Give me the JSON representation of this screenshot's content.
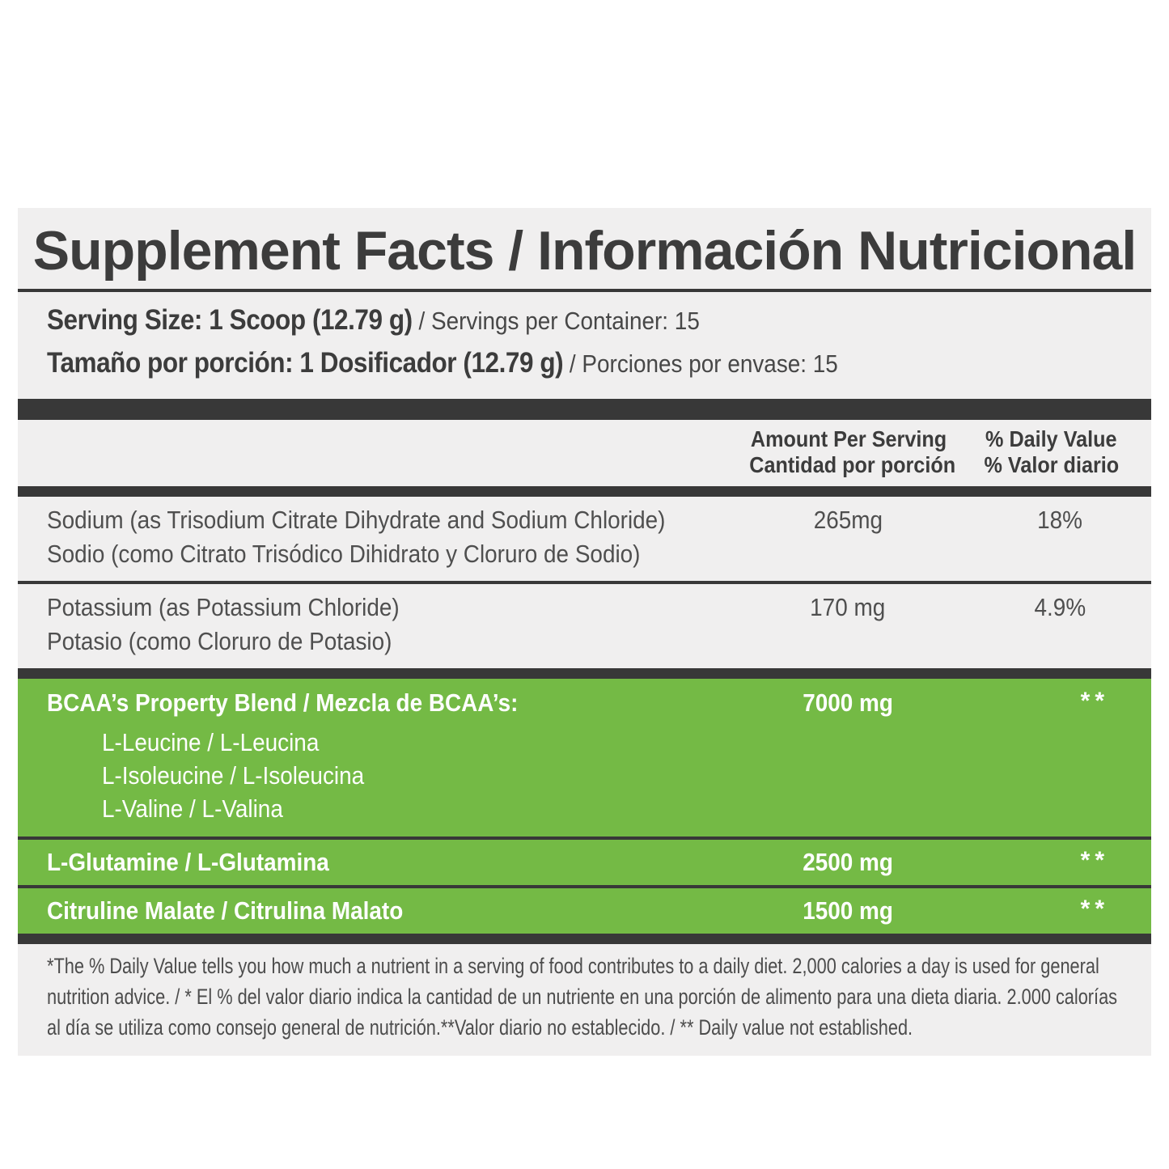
{
  "colors": {
    "green": "#74ba45",
    "dark_bar": "#383838",
    "panel_bg": "#f0efef",
    "text_dark": "#3c3c3c",
    "text_gray": "#4f4f4f"
  },
  "label": {
    "title": "Supplement Facts / Información Nutricional",
    "serving": {
      "en_bold": "Serving Size: 1 Scoop (12.79 g)",
      "en_rest": " / Servings per Container: 15",
      "es_bold": "Tamaño por porción: 1 Dosificador (12.79 g)",
      "es_rest": " / Porciones por envase: 15"
    },
    "columns": {
      "amount_en": "Amount Per Serving",
      "amount_es": "Cantidad por porción",
      "dv_en": "% Daily Value",
      "dv_es": "% Valor diario"
    },
    "rows": [
      {
        "name_en": "Sodium (as Trisodium Citrate Dihydrate and Sodium Chloride)",
        "name_es": "Sodio (como Citrato Trisódico Dihidrato y Cloruro de Sodio)",
        "amount": "265mg",
        "dv": "18%"
      },
      {
        "name_en": "Potassium (as Potassium Chloride)",
        "name_es": "Potasio (como Cloruro de Potasio)",
        "amount": "170 mg",
        "dv": "4.9%"
      }
    ],
    "green_rows": [
      {
        "name": "BCAA’s Property Blend / Mezcla de BCAA’s:",
        "amount": "7000 mg",
        "dv": "**",
        "sub": [
          "L-Leucine / L-Leucina",
          "L-Isoleucine / L-Isoleucina",
          "L-Valine / L-Valina"
        ]
      },
      {
        "name": "L-Glutamine / L-Glutamina",
        "amount": "2500 mg",
        "dv": "**"
      },
      {
        "name": "Citruline Malate / Citrulina Malato",
        "amount": "1500 mg",
        "dv": "**"
      }
    ],
    "footnote": "*The % Daily Value tells you how much a nutrient in a serving of food contributes to a daily diet. 2,000 calories a day is used for general nutrition advice. / * El % del valor diario indica la cantidad de un nutriente en una porción de alimento para una dieta diaria. 2.000 calorías al día se utiliza como consejo general de nutrición.**Valor diario no establecido. / ** Daily value not established."
  }
}
